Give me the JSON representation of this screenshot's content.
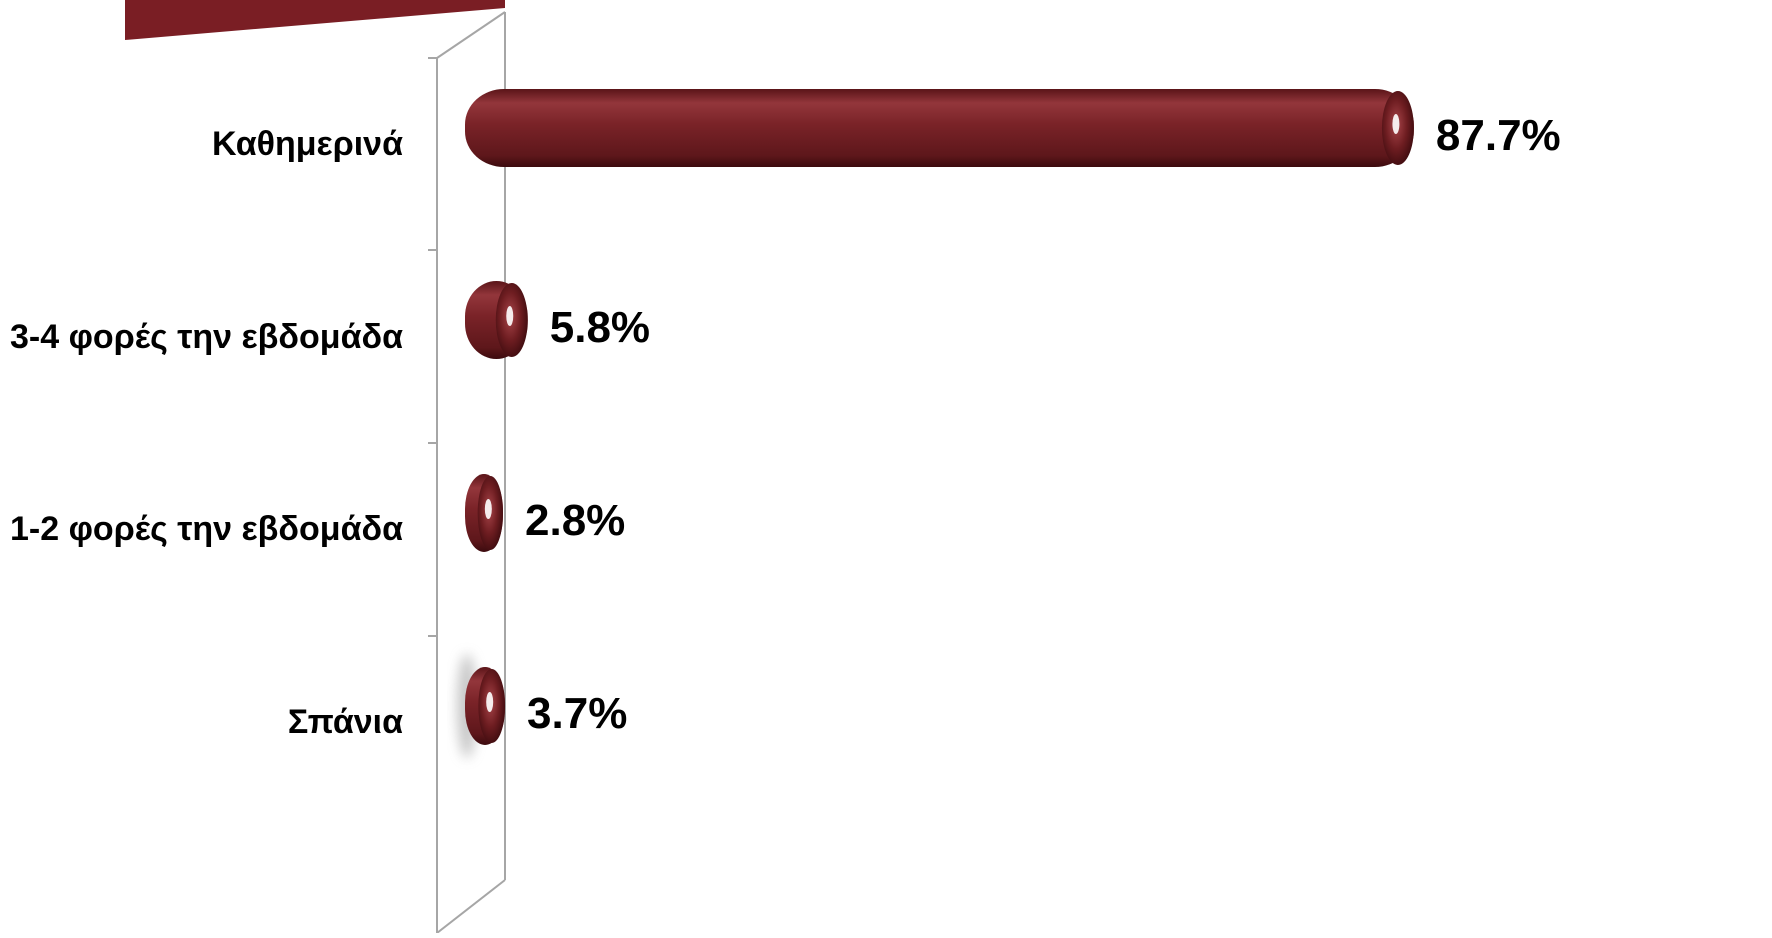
{
  "chart_data": {
    "type": "bar",
    "orientation": "horizontal",
    "categories": [
      "Καθημερινά",
      "3-4 φορές την εβδομάδα",
      "1-2 φορές την εβδομάδα",
      "Σπάνια"
    ],
    "values": [
      87.7,
      5.8,
      2.8,
      3.7
    ],
    "value_labels": [
      "87.7%",
      "5.8%",
      "2.8%",
      "3.7%"
    ],
    "xlim": [
      0,
      100
    ],
    "grid": false,
    "legend": "none",
    "title": "",
    "xlabel": "",
    "ylabel": ""
  },
  "colors": {
    "bar": "#7a2328",
    "bar_dark": "#4a0f12",
    "bar_highlight": "#a8454a",
    "banner": "#7a1e24",
    "axis": "#a6a6a6"
  }
}
